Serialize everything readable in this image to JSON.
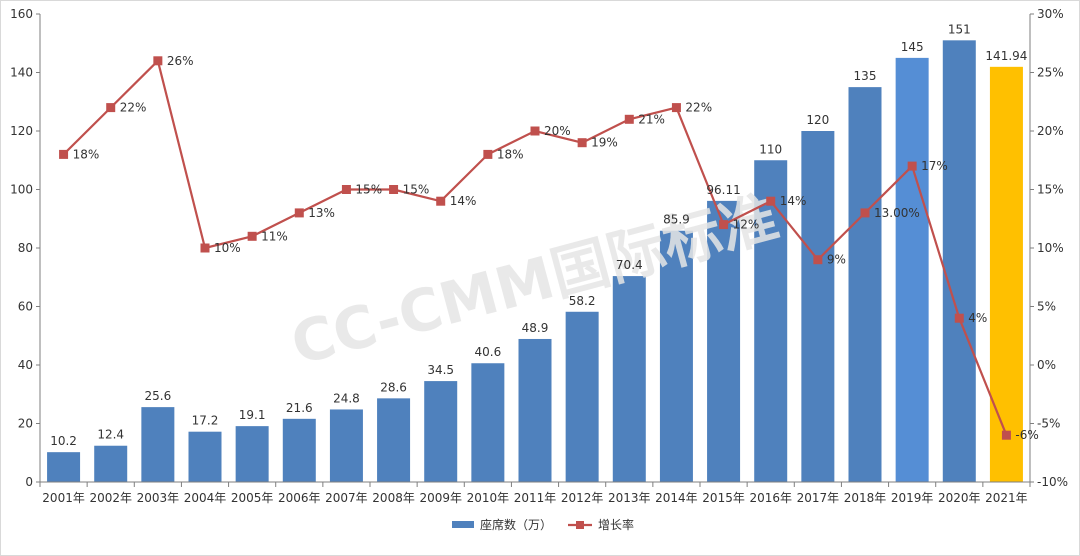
{
  "chart_data": {
    "type": "bar",
    "categories": [
      "2001年",
      "2002年",
      "2003年",
      "2004年",
      "2005年",
      "2006年",
      "2007年",
      "2008年",
      "2009年",
      "2010年",
      "2011年",
      "2012年",
      "2013年",
      "2014年",
      "2015年",
      "2016年",
      "2017年",
      "2018年",
      "2019年",
      "2020年",
      "2021年"
    ],
    "series": [
      {
        "name": "座席数（万）",
        "type": "bar",
        "axis": "left",
        "color": "#4f81bd",
        "values": [
          10.2,
          12.4,
          25.6,
          17.2,
          19.1,
          21.6,
          24.8,
          28.6,
          34.5,
          40.6,
          48.9,
          58.2,
          70.4,
          85.9,
          96.11,
          110,
          120,
          135,
          145,
          151,
          141.94
        ],
        "labels": [
          "10.2",
          "12.4",
          "25.6",
          "17.2",
          "19.1",
          "21.6",
          "24.8",
          "28.6",
          "34.5",
          "40.6",
          "48.9",
          "58.2",
          "70.4",
          "85.9",
          "96.11",
          "110",
          "120",
          "135",
          "145",
          "151",
          "141.94"
        ],
        "bar_colors": {
          "18": "#558ed5",
          "20": "#ffc000"
        }
      },
      {
        "name": "增长率",
        "type": "line",
        "axis": "right",
        "color": "#c0504d",
        "values": [
          18,
          22,
          26,
          10,
          11,
          13,
          15,
          15,
          14,
          18,
          20,
          19,
          21,
          22,
          12,
          14,
          9,
          13,
          17,
          4,
          -6
        ],
        "labels": [
          "18%",
          "22%",
          "26%",
          "10%",
          "11%",
          "13%",
          "15%",
          "15%",
          "14%",
          "18%",
          "20%",
          "19%",
          "21%",
          "22%",
          "12%",
          "14%",
          "9%",
          "13.00%",
          "17%",
          "4%",
          "-6%"
        ]
      }
    ],
    "ylim": [
      0,
      160
    ],
    "yticks": [
      "0",
      "20",
      "40",
      "60",
      "80",
      "100",
      "120",
      "140",
      "160"
    ],
    "y2lim": [
      -10,
      30
    ],
    "y2ticks": [
      "-10%",
      "-5%",
      "0%",
      "5%",
      "10%",
      "15%",
      "20%",
      "25%",
      "30%"
    ],
    "grid": false,
    "legend": "bottom",
    "title": "",
    "xlabel": "",
    "ylabel": ""
  },
  "watermark": "CC-CMM国际标准"
}
